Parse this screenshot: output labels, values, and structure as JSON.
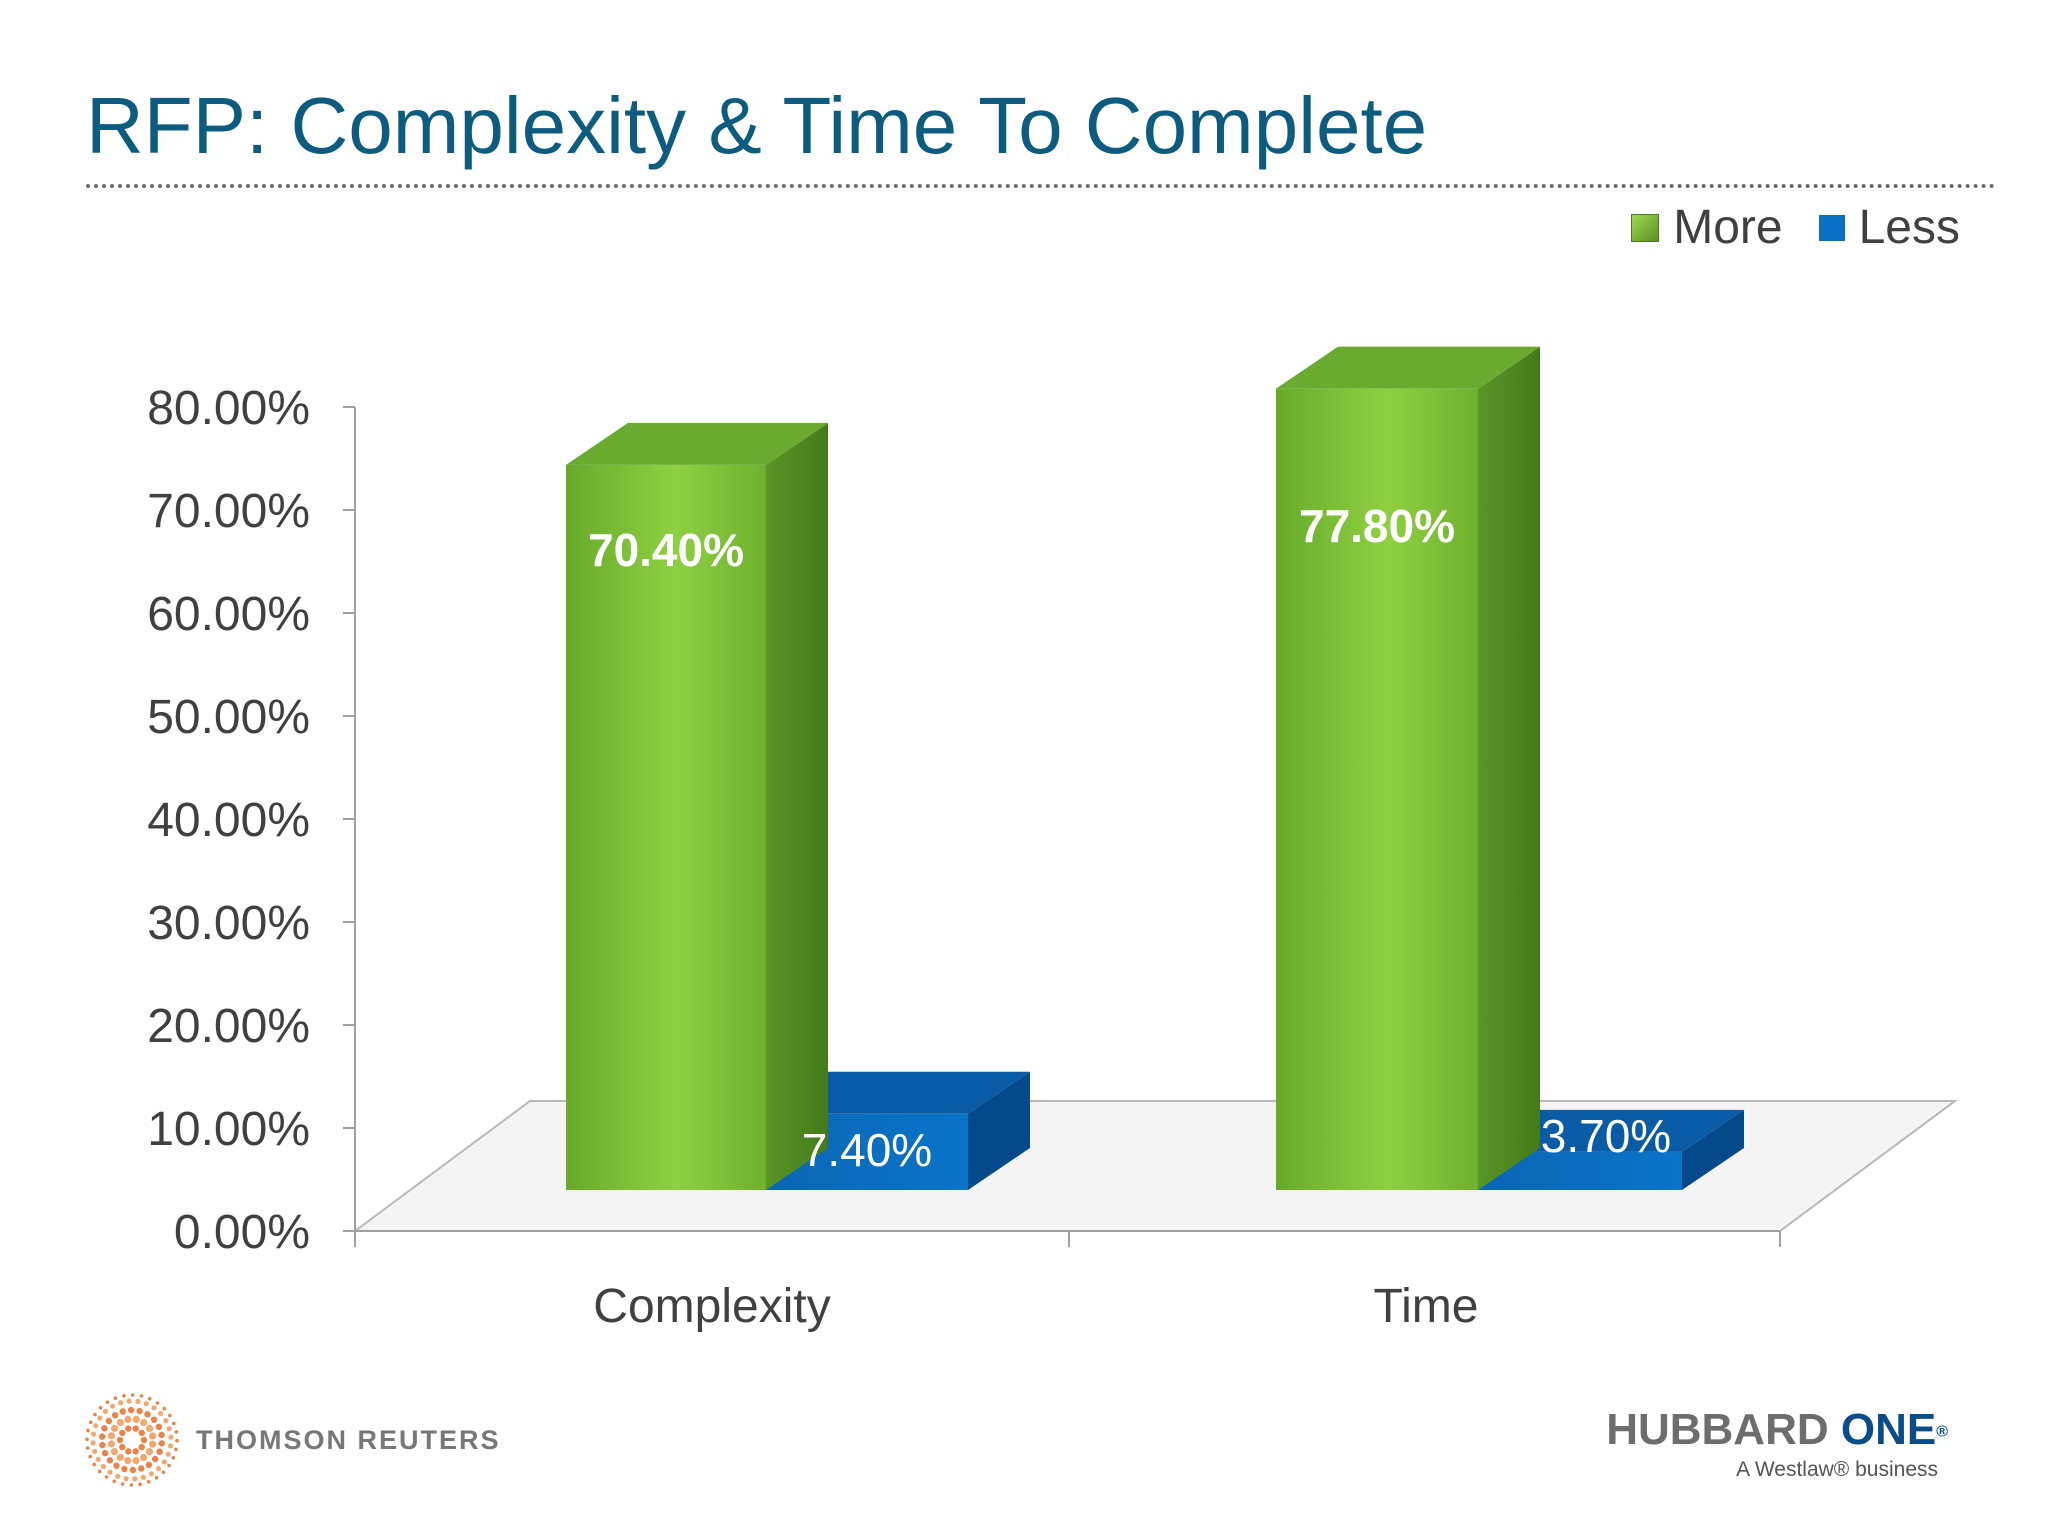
{
  "title": "RFP: Complexity & Time To Complete",
  "colors": {
    "title": "#0d5c80",
    "more_front": "#7cc23a",
    "more_side": "#4f8a21",
    "more_top": "#6aaa2f",
    "less_front": "#0a6fc2",
    "less_side": "#06498a",
    "less_top": "#0a5ba6"
  },
  "chart_data": {
    "type": "bar",
    "categories": [
      "Complexity",
      "Time"
    ],
    "series": [
      {
        "name": "More",
        "values": [
          70.4,
          77.8
        ],
        "labels": [
          "70.40%",
          "77.80%"
        ]
      },
      {
        "name": "Less",
        "values": [
          7.4,
          3.7
        ],
        "labels": [
          "7.40%",
          "3.70%"
        ]
      }
    ],
    "y_ticks": [
      "0.00%",
      "10.00%",
      "20.00%",
      "30.00%",
      "40.00%",
      "50.00%",
      "60.00%",
      "70.00%",
      "80.00%"
    ],
    "ylim": [
      0,
      80
    ],
    "legend_position": "top-right",
    "style": "3d-column"
  },
  "legend": {
    "more": "More",
    "less": "Less"
  },
  "footer": {
    "left_brand": "THOMSON REUTERS",
    "right_brand_part1": "HUBBARD ",
    "right_brand_part2": "ONE",
    "right_brand_reg": "®",
    "right_tagline": "A Westlaw® business"
  }
}
